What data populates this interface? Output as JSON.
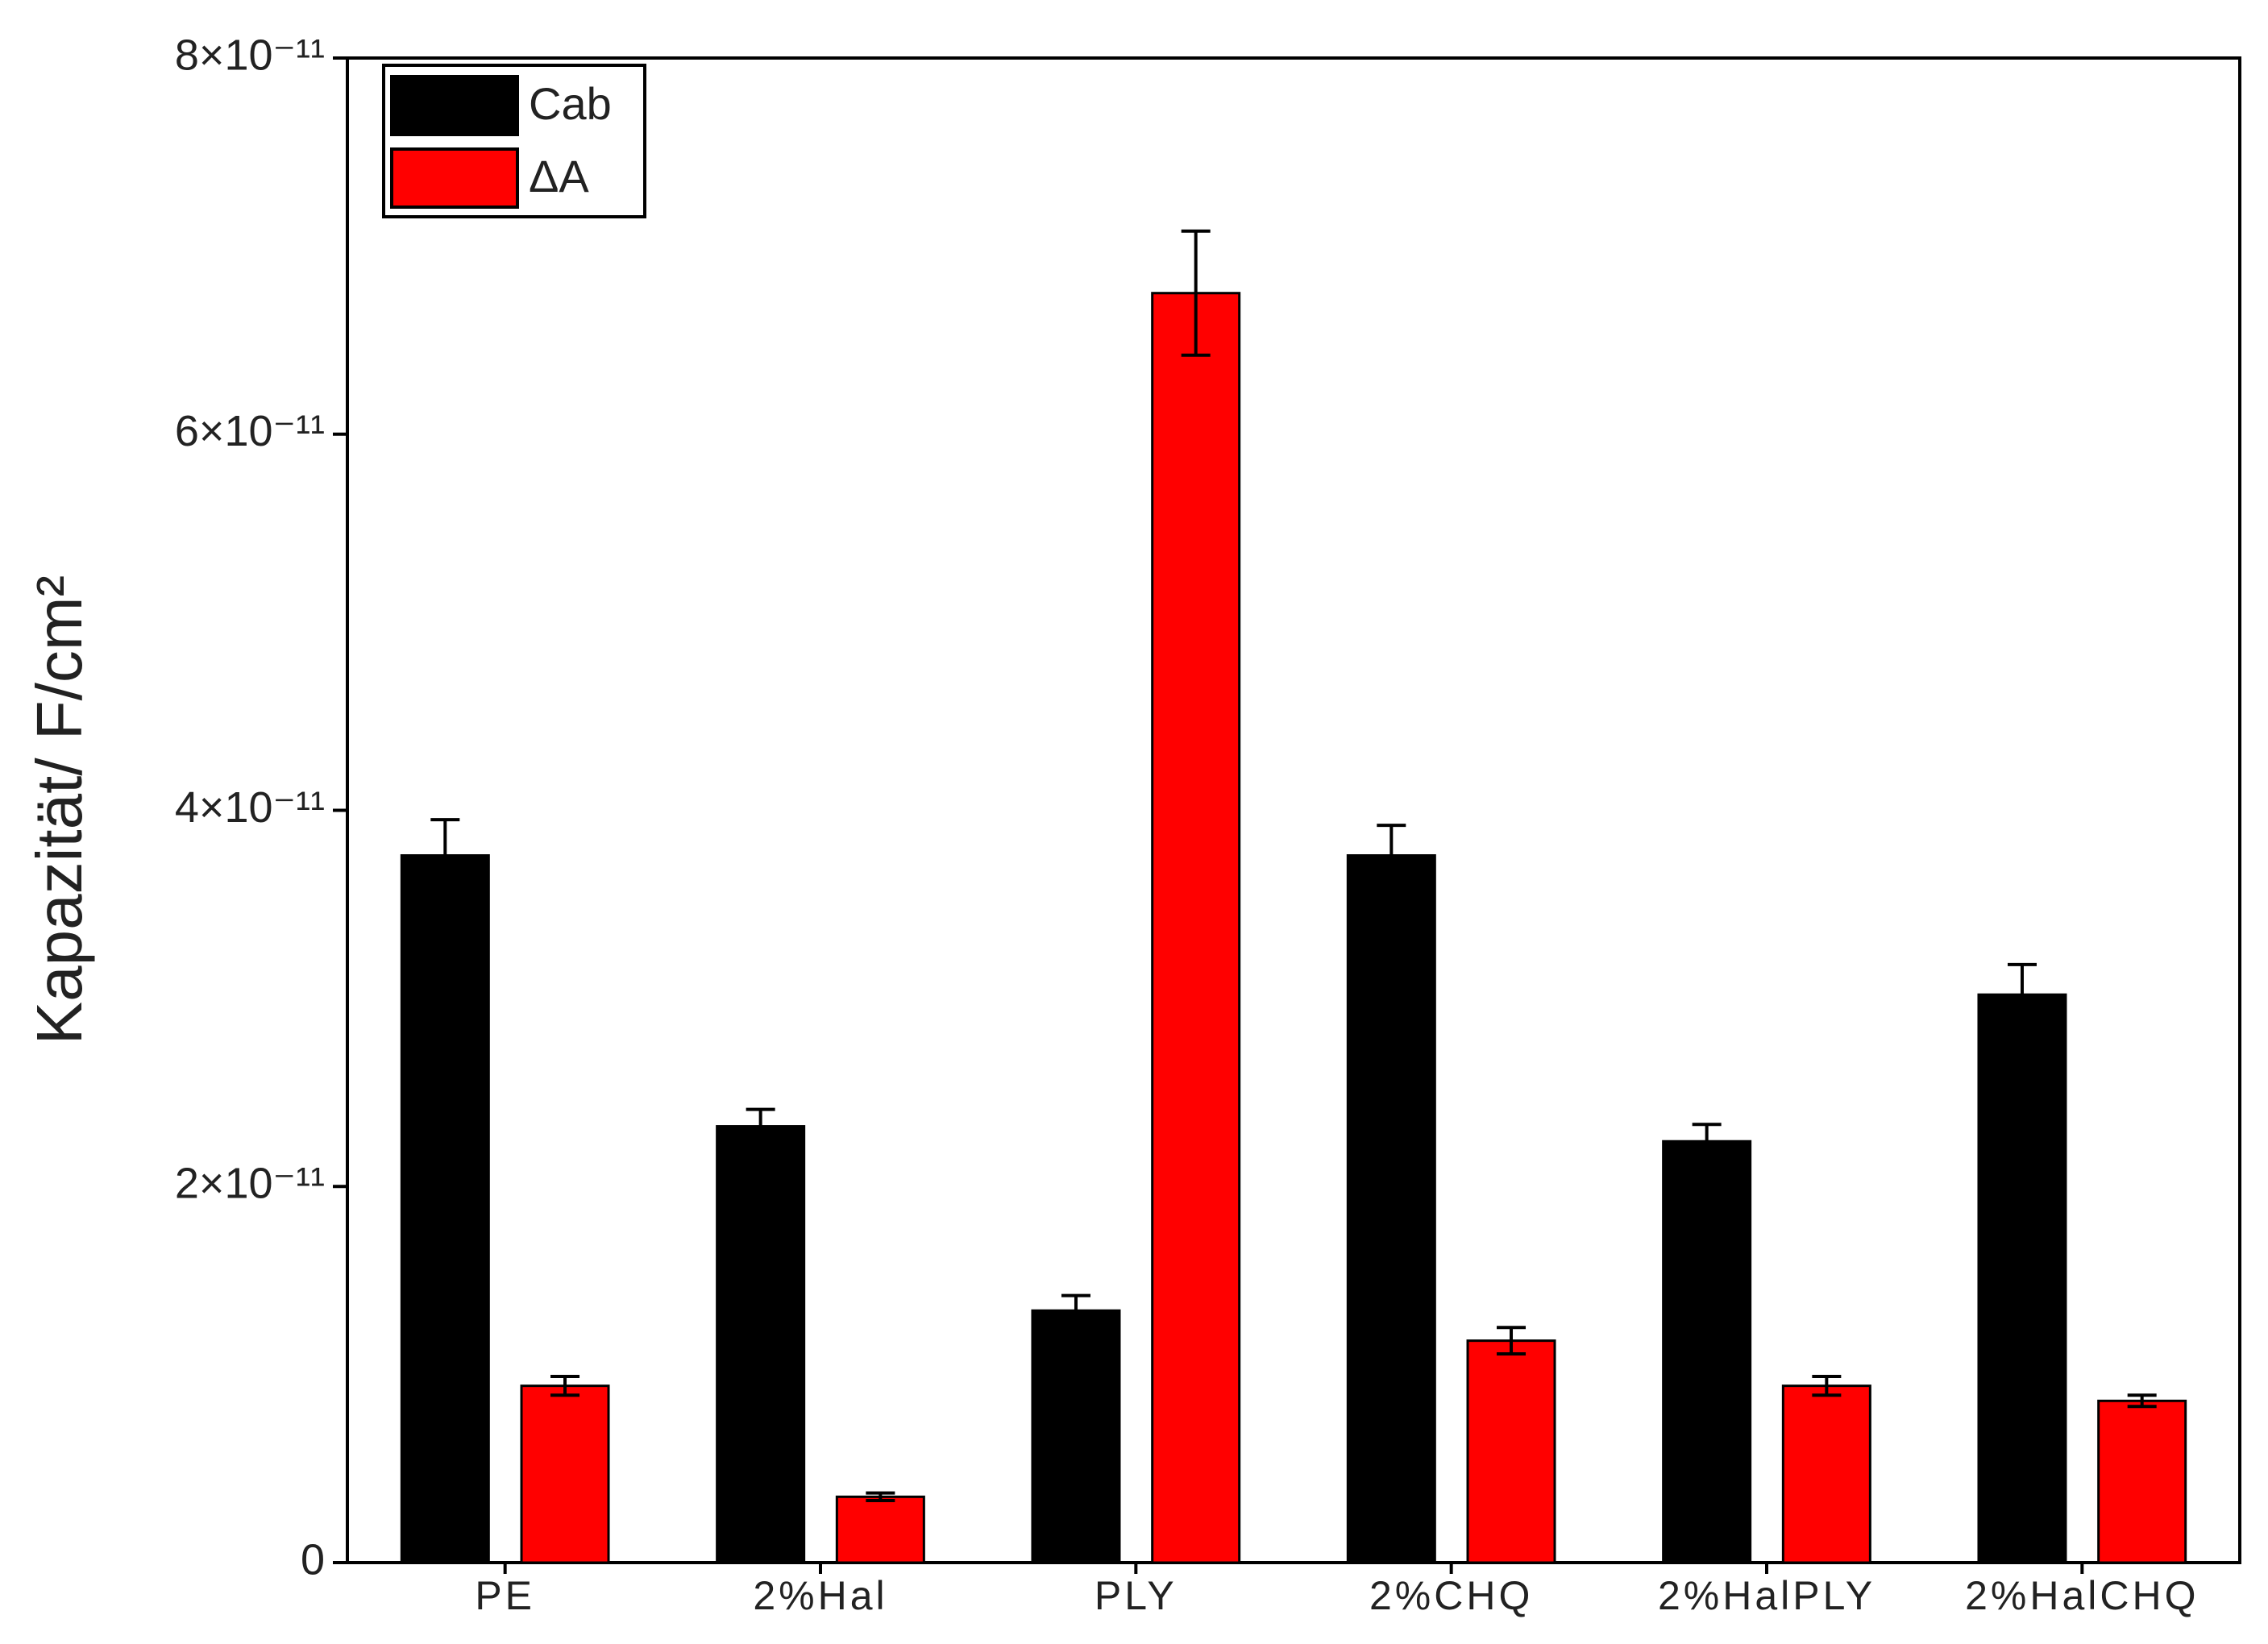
{
  "chart_data": {
    "type": "bar",
    "y_label": "Kapazität/ F/cm²",
    "categories": [
      "PE",
      "2%Hal",
      "PLY",
      "2%CHQ",
      "2%HalPLY",
      "2%HalCHQ"
    ],
    "series": [
      {
        "name": "Cab",
        "color": "#000000",
        "values": [
          3.76e-11,
          2.32e-11,
          1.34e-11,
          3.76e-11,
          2.24e-11,
          3.02e-11
        ],
        "errors": [
          1.9e-12,
          9e-13,
          8e-13,
          1.6e-12,
          9e-13,
          1.6e-12
        ]
      },
      {
        "name": "ΔA",
        "color": "#ff0000",
        "values": [
          9.4e-12,
          3.5e-12,
          6.75e-11,
          1.18e-11,
          9.4e-12,
          8.6e-12
        ],
        "errors": [
          5e-13,
          2e-13,
          3.3e-12,
          7e-13,
          5e-13,
          3e-13
        ]
      }
    ],
    "ylim": [
      0,
      8e-11
    ],
    "yticks": [
      0,
      {
        "value": 2e-11,
        "label": "2×10⁻¹¹"
      },
      {
        "value": 4e-11,
        "label": "4×10⁻¹¹"
      },
      {
        "value": 6e-11,
        "label": "6×10⁻¹¹"
      },
      {
        "value": 8e-11,
        "label": "8×10⁻¹¹"
      }
    ],
    "legend": "upper left",
    "grid": false
  }
}
